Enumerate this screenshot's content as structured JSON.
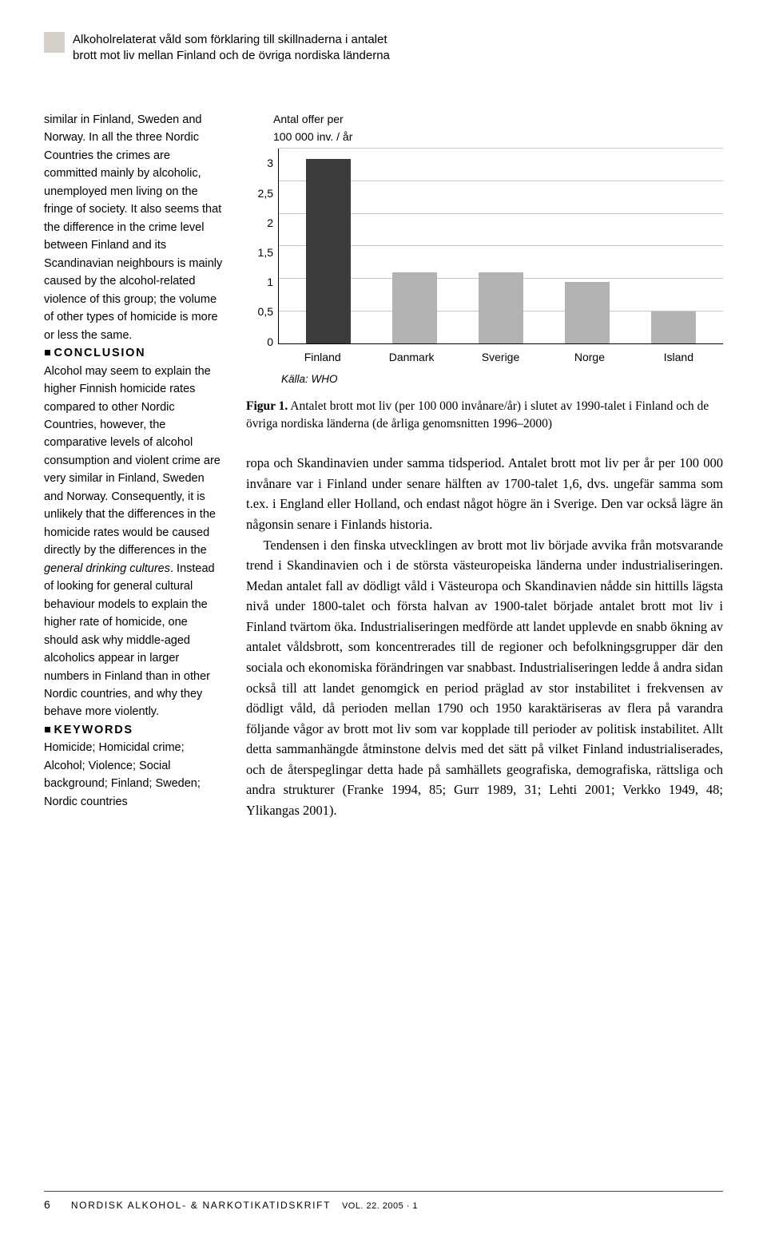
{
  "header": {
    "line1": "Alkoholrelaterat våld som förklaring till skillnaderna i antalet",
    "line2": "brott mot liv mellan Finland och de övriga nordiska länderna"
  },
  "abstract": {
    "para1": "similar in Finland, Sweden and Norway. In all the three Nordic Countries the crimes are committed mainly by alcoholic, unemployed men living on the fringe of society. It also seems that the difference in the crime level between Finland and its Scandinavian neighbours is mainly caused by the alcohol-related violence of this group; the volume of other types of homicide is more or less the same.",
    "conclusion_head": "CONCLUSION",
    "conclusion_text_a": "Alcohol may seem to explain the higher Finnish homicide rates compared to other Nordic Countries, however, the comparative levels of alcohol consumption and violent crime are very similar in Finland, Sweden and Norway. Consequently, it is unlikely that the differences in the homicide rates would be caused directly by the differences in the ",
    "conclusion_text_italic": "general drinking cultures",
    "conclusion_text_b": ". Instead of looking for general cultural behaviour models to explain the higher rate of homicide, one should ask why  middle-aged alcoholics appear in larger numbers in Finland than in other Nordic countries, and why they behave more violently.",
    "keywords_head": "KEYWORDS",
    "keywords_text": "Homicide; Homicidal crime; Alcohol; Violence; Social background; Finland; Sweden; Nordic countries"
  },
  "chart": {
    "ylabel_l1": "Antal offer per",
    "ylabel_l2": "100 000 inv. / år",
    "ymax": 3,
    "ytick_step": 0.5,
    "yticks": [
      "3",
      "2,5",
      "2",
      "1,5",
      "1",
      "0,5",
      "0"
    ],
    "categories": [
      "Finland",
      "Danmark",
      "Sverige",
      "Norge",
      "Island"
    ],
    "values": [
      2.85,
      1.1,
      1.1,
      0.95,
      0.5
    ],
    "bar_colors": [
      "#3c3c3c",
      "#b3b3b3",
      "#b3b3b3",
      "#b3b3b3",
      "#b3b3b3"
    ],
    "grid_color": "#a0a0a0",
    "background": "#ffffff",
    "source": "Källa: WHO"
  },
  "caption": {
    "lead": "Figur 1.",
    "text": " Antalet brott mot liv (per 100 000 invånare/år) i slutet av 1990-talet i Finland och de övriga nordiska länderna (de årliga genomsnitten 1996–2000)"
  },
  "body": {
    "p1": "ropa och Skandinavien under samma tidsperiod. Antalet brott mot liv per år per 100 000 invånare var i Finland under senare hälften av 1700-talet 1,6, dvs. ungefär samma som t.ex. i England eller Holland, och endast något högre än i Sverige. Den var också lägre än någonsin senare i Finlands historia.",
    "p2": "Tendensen i den finska utvecklingen av brott mot liv började avvika från motsvarande trend i Skandinavien och i de största västeuropeiska länderna under industrialiseringen. Medan antalet fall av dödligt våld i Västeuropa och Skandinavien nådde sin hittills lägsta nivå under 1800-talet och första halvan av 1900-talet började antalet brott mot liv i Finland tvärtom öka. Industrialiseringen medförde att landet upplevde en snabb ökning av antalet våldsbrott, som koncentrerades till de regioner och befolkningsgrupper där den sociala och ekonomiska förändringen var snabbast. Industrialiseringen ledde å andra sidan också till att landet genomgick en period präglad av stor instabilitet i frekvensen av dödligt våld, då perioden mellan 1790 och 1950 karaktäriseras av flera på varandra följande vågor av brott mot liv som var kopplade till perioder av politisk instabilitet. Allt detta sammanhängde åtminstone delvis med det sätt på vilket Finland industrialiserades, och de återspeglingar detta hade på samhällets geografiska, demografiska, rättsliga och andra strukturer (Franke 1994, 85; Gurr 1989, 31; Lehti 2001; Verkko 1949, 48; Ylikangas 2001)."
  },
  "footer": {
    "page": "6",
    "title": "NORDISK ALKOHOL- & NARKOTIKATIDSKRIFT",
    "vol": "VOL. 22. 2005",
    "issue": "1"
  }
}
